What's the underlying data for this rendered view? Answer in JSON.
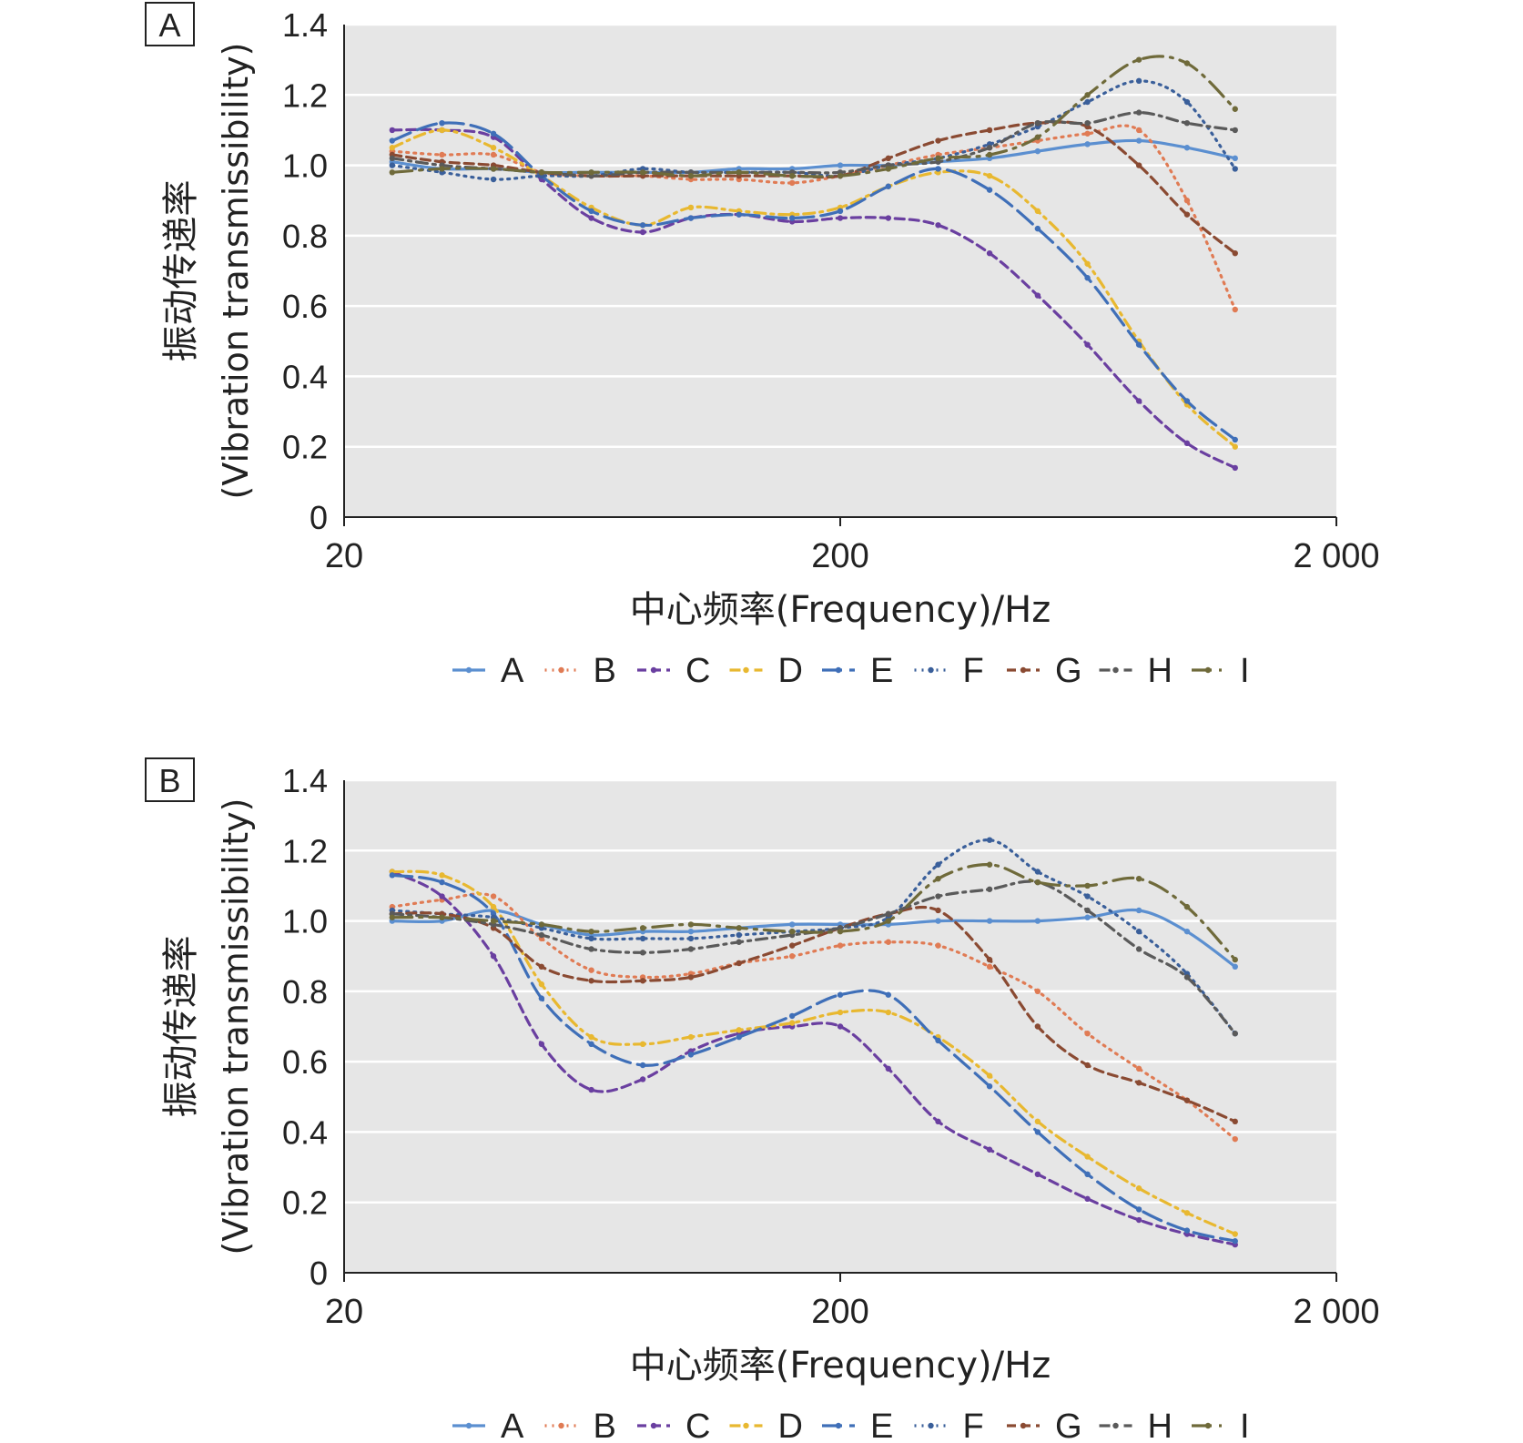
{
  "chart_data": [
    {
      "panel": "A",
      "type": "line",
      "xscale": "log",
      "xlim": [
        20,
        2000
      ],
      "xticks": [
        "20",
        "200",
        "2 000"
      ],
      "ylim": [
        0,
        1.4
      ],
      "yticks": [
        "0",
        "0.2",
        "0.4",
        "0.6",
        "0.8",
        "1.0",
        "1.2",
        "1.4"
      ],
      "xlabel": "中心频率(Frequency)/Hz",
      "ylabel_line1": "振动传递率",
      "ylabel_line2": "(Vibration transmissibility)",
      "grid": true,
      "legend_position": "bottom",
      "x": [
        25,
        31.5,
        40,
        50,
        63,
        80,
        100,
        125,
        160,
        200,
        250,
        315,
        400,
        500,
        630,
        800,
        1000,
        1250
      ],
      "series": [
        {
          "name": "A",
          "color": "#5b8fd0",
          "dash": "solid",
          "values": [
            1.01,
            0.99,
            0.99,
            0.98,
            0.98,
            0.98,
            0.98,
            0.99,
            0.99,
            1.0,
            1.0,
            1.01,
            1.02,
            1.04,
            1.06,
            1.07,
            1.05,
            1.02
          ]
        },
        {
          "name": "B",
          "color": "#e07b54",
          "dash": "dot",
          "values": [
            1.04,
            1.03,
            1.03,
            0.98,
            0.97,
            0.97,
            0.96,
            0.96,
            0.95,
            0.97,
            1.0,
            1.03,
            1.05,
            1.07,
            1.09,
            1.1,
            0.9,
            0.59
          ]
        },
        {
          "name": "C",
          "color": "#6a3fa0",
          "dash": "dash",
          "values": [
            1.1,
            1.1,
            1.08,
            0.96,
            0.85,
            0.81,
            0.85,
            0.86,
            0.84,
            0.85,
            0.85,
            0.83,
            0.75,
            0.63,
            0.49,
            0.33,
            0.21,
            0.14
          ]
        },
        {
          "name": "D",
          "color": "#e8b830",
          "dash": "dashdot",
          "values": [
            1.05,
            1.1,
            1.05,
            0.97,
            0.88,
            0.83,
            0.88,
            0.87,
            0.86,
            0.88,
            0.94,
            0.98,
            0.97,
            0.87,
            0.72,
            0.5,
            0.32,
            0.2
          ]
        },
        {
          "name": "E",
          "color": "#3f6fb8",
          "dash": "longdash",
          "values": [
            1.07,
            1.12,
            1.09,
            0.97,
            0.87,
            0.83,
            0.85,
            0.86,
            0.85,
            0.87,
            0.94,
            0.99,
            0.93,
            0.82,
            0.68,
            0.49,
            0.33,
            0.22
          ]
        },
        {
          "name": "F",
          "color": "#3a5f9a",
          "dash": "dot",
          "values": [
            1.0,
            0.98,
            0.96,
            0.97,
            0.97,
            0.99,
            0.98,
            0.98,
            0.98,
            0.97,
            1.0,
            1.02,
            1.06,
            1.11,
            1.18,
            1.24,
            1.18,
            0.99
          ]
        },
        {
          "name": "G",
          "color": "#8a4a32",
          "dash": "dash",
          "values": [
            1.03,
            1.01,
            1.0,
            0.98,
            0.97,
            0.97,
            0.97,
            0.97,
            0.97,
            0.97,
            1.02,
            1.07,
            1.1,
            1.12,
            1.11,
            1.0,
            0.86,
            0.75
          ]
        },
        {
          "name": "H",
          "color": "#5a5a5a",
          "dash": "dashdot",
          "values": [
            1.02,
            1.0,
            0.99,
            0.98,
            0.97,
            0.98,
            0.98,
            0.98,
            0.98,
            0.98,
            1.0,
            1.01,
            1.05,
            1.12,
            1.12,
            1.15,
            1.12,
            1.1
          ]
        },
        {
          "name": "I",
          "color": "#6f6a3a",
          "dash": "longdashdot",
          "values": [
            0.98,
            0.99,
            0.99,
            0.98,
            0.98,
            0.98,
            0.97,
            0.98,
            0.97,
            0.97,
            0.99,
            1.02,
            1.03,
            1.08,
            1.2,
            1.3,
            1.29,
            1.16
          ]
        }
      ]
    },
    {
      "panel": "B",
      "type": "line",
      "xscale": "log",
      "xlim": [
        20,
        2000
      ],
      "xticks": [
        "20",
        "200",
        "2 000"
      ],
      "ylim": [
        0,
        1.4
      ],
      "yticks": [
        "0",
        "0.2",
        "0.4",
        "0.6",
        "0.8",
        "1.0",
        "1.2",
        "1.4"
      ],
      "xlabel": "中心频率(Frequency)/Hz",
      "ylabel_line1": "振动传递率",
      "ylabel_line2": "(Vibration transmissibility)",
      "grid": true,
      "legend_position": "bottom",
      "x": [
        25,
        31.5,
        40,
        50,
        63,
        80,
        100,
        125,
        160,
        200,
        250,
        315,
        400,
        500,
        630,
        800,
        1000,
        1250
      ],
      "series": [
        {
          "name": "A",
          "color": "#5b8fd0",
          "dash": "solid",
          "values": [
            1.0,
            1.0,
            1.03,
            0.99,
            0.96,
            0.97,
            0.97,
            0.98,
            0.99,
            0.99,
            0.99,
            1.0,
            1.0,
            1.0,
            1.01,
            1.03,
            0.97,
            0.87
          ]
        },
        {
          "name": "B",
          "color": "#e07b54",
          "dash": "dot",
          "values": [
            1.04,
            1.06,
            1.07,
            0.95,
            0.86,
            0.84,
            0.85,
            0.88,
            0.9,
            0.93,
            0.94,
            0.93,
            0.87,
            0.8,
            0.68,
            0.58,
            0.49,
            0.38
          ]
        },
        {
          "name": "C",
          "color": "#6a3fa0",
          "dash": "dash",
          "values": [
            1.14,
            1.07,
            0.9,
            0.65,
            0.52,
            0.55,
            0.63,
            0.68,
            0.7,
            0.7,
            0.58,
            0.43,
            0.35,
            0.28,
            0.21,
            0.15,
            0.11,
            0.08
          ]
        },
        {
          "name": "D",
          "color": "#e8b830",
          "dash": "dashdot",
          "values": [
            1.14,
            1.13,
            1.04,
            0.82,
            0.67,
            0.65,
            0.67,
            0.69,
            0.71,
            0.74,
            0.74,
            0.67,
            0.56,
            0.43,
            0.33,
            0.24,
            0.17,
            0.11
          ]
        },
        {
          "name": "E",
          "color": "#3f6fb8",
          "dash": "longdash",
          "values": [
            1.13,
            1.11,
            1.02,
            0.78,
            0.65,
            0.59,
            0.62,
            0.67,
            0.73,
            0.79,
            0.79,
            0.66,
            0.53,
            0.4,
            0.28,
            0.18,
            0.12,
            0.09
          ]
        },
        {
          "name": "F",
          "color": "#3a5f9a",
          "dash": "dot",
          "values": [
            1.03,
            1.02,
            1.01,
            0.98,
            0.95,
            0.95,
            0.95,
            0.96,
            0.97,
            0.98,
            1.01,
            1.16,
            1.23,
            1.14,
            1.07,
            0.97,
            0.85,
            0.68
          ]
        },
        {
          "name": "G",
          "color": "#8a4a32",
          "dash": "dash",
          "values": [
            1.02,
            1.02,
            0.98,
            0.87,
            0.83,
            0.83,
            0.84,
            0.88,
            0.93,
            0.98,
            1.02,
            1.03,
            0.89,
            0.7,
            0.59,
            0.54,
            0.49,
            0.43
          ]
        },
        {
          "name": "H",
          "color": "#5a5a5a",
          "dash": "dashdot",
          "values": [
            1.02,
            1.01,
            0.99,
            0.96,
            0.92,
            0.91,
            0.92,
            0.94,
            0.96,
            0.98,
            1.02,
            1.07,
            1.09,
            1.11,
            1.03,
            0.92,
            0.84,
            0.68
          ]
        },
        {
          "name": "I",
          "color": "#6f6a3a",
          "dash": "longdashdot",
          "values": [
            1.01,
            1.01,
            1.0,
            0.99,
            0.97,
            0.98,
            0.99,
            0.98,
            0.97,
            0.97,
            1.0,
            1.12,
            1.16,
            1.11,
            1.1,
            1.12,
            1.04,
            0.89
          ]
        }
      ]
    }
  ]
}
